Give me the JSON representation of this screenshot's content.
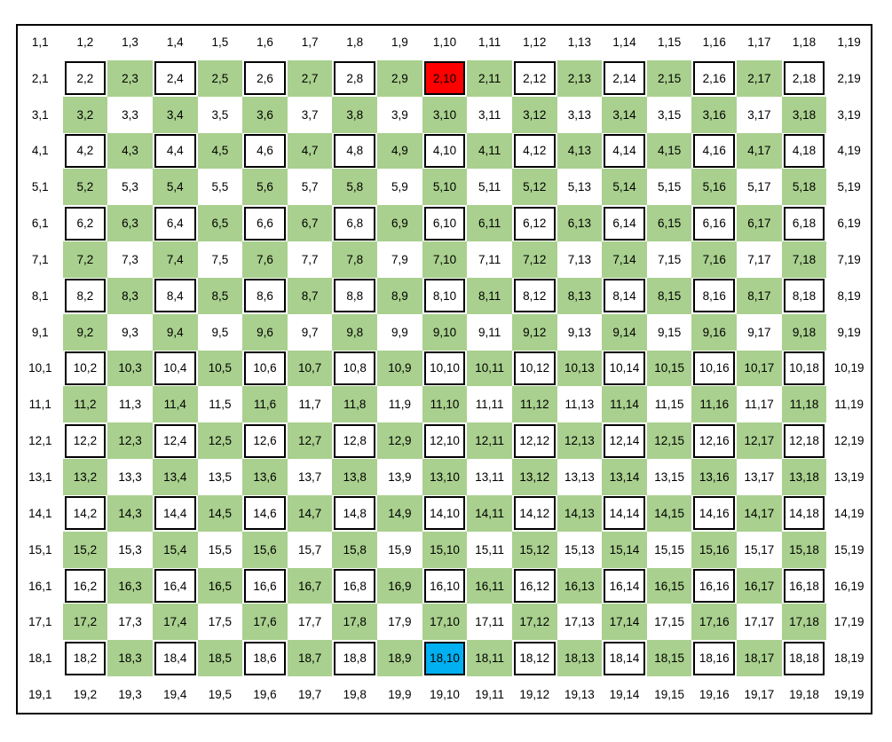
{
  "grid": {
    "rows": 19,
    "cols": 19,
    "label_separator": ",",
    "colors": {
      "green": "#a9d08e",
      "start": "#ff0000",
      "goal": "#00b0f0",
      "boxed": "#ffffff",
      "border": "#000000"
    },
    "start_cell": {
      "row": 2,
      "col": 10,
      "label": "2,10"
    },
    "goal_cell": {
      "row": 18,
      "col": 10,
      "label": "18,10"
    }
  }
}
